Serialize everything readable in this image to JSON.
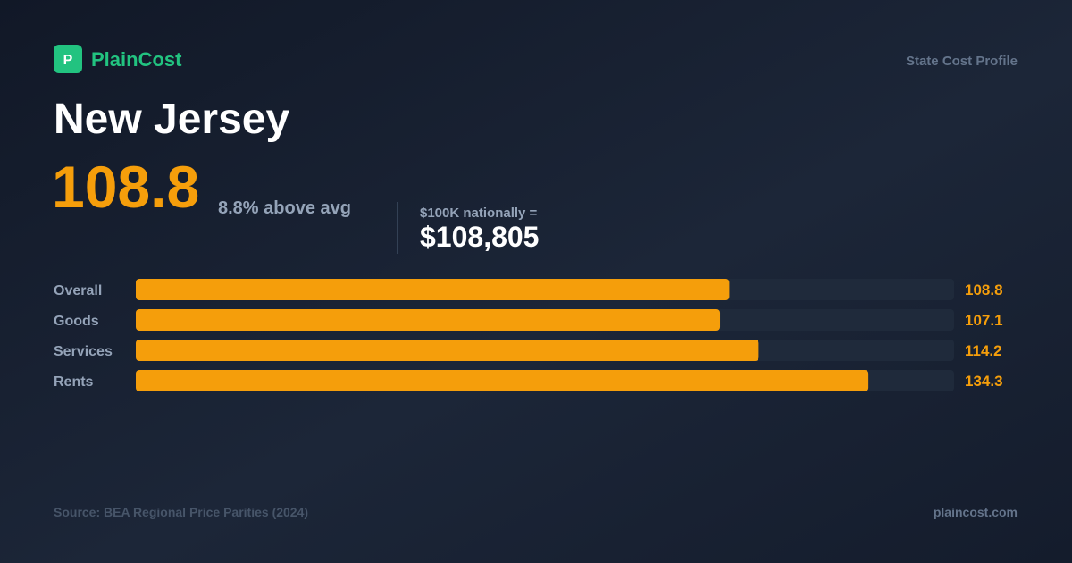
{
  "header": {
    "logo_letter": "P",
    "brand": "PlainCost",
    "label": "State Cost Profile"
  },
  "title": "New Jersey",
  "headline": {
    "value": "108.8",
    "delta": "8.8% above avg",
    "equivalence_label": "$100K nationally =",
    "equivalence_value": "$108,805"
  },
  "chart_data": {
    "type": "bar",
    "orientation": "horizontal",
    "categories": [
      "Overall",
      "Goods",
      "Services",
      "Rents"
    ],
    "values": [
      108.8,
      107.1,
      114.2,
      134.3
    ],
    "color": "#f59e0b",
    "xlim": [
      0,
      150
    ]
  },
  "footer": {
    "source": "Source: BEA Regional Price Parities (2024)",
    "site": "plaincost.com"
  }
}
